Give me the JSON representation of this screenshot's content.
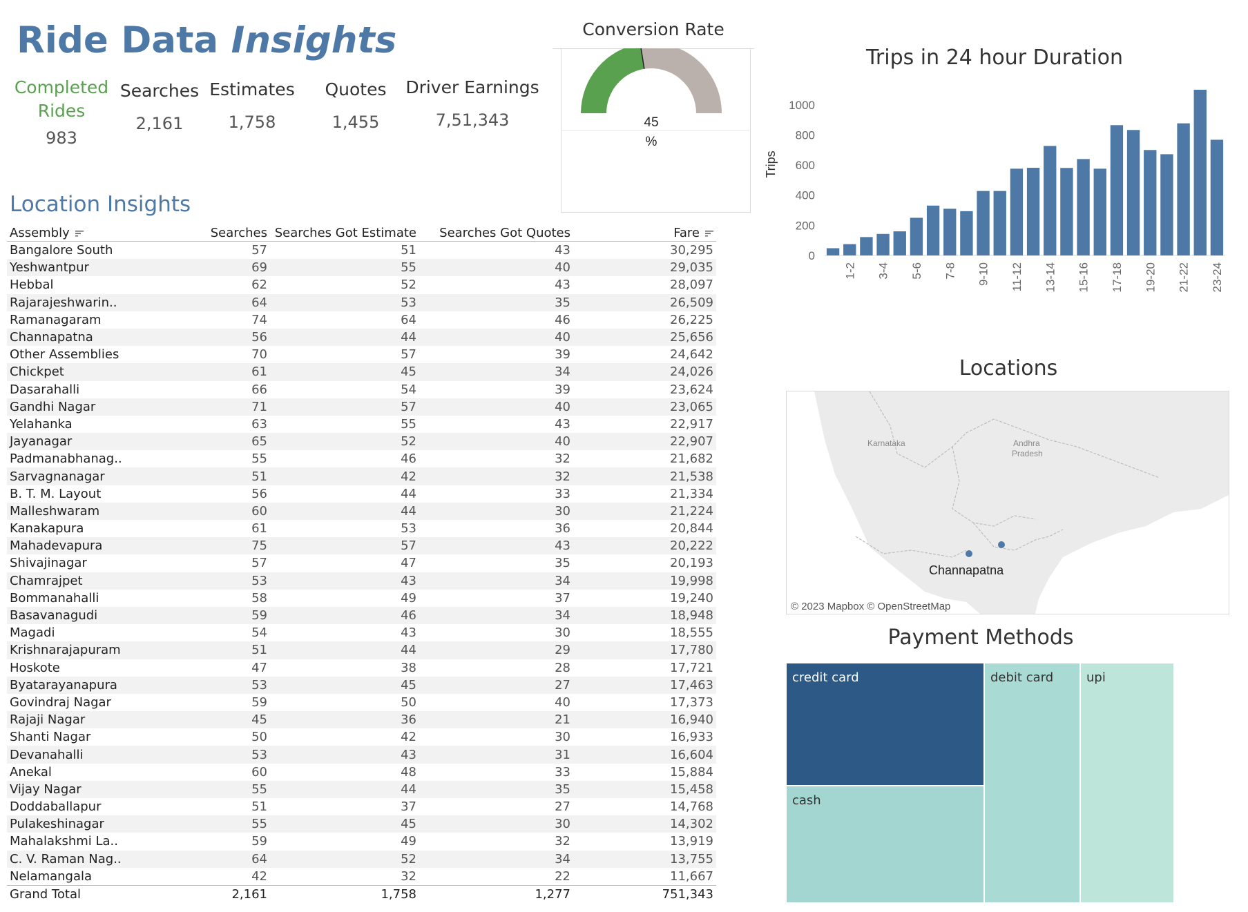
{
  "title": {
    "part1": "Ride Data ",
    "part2": "Insights"
  },
  "kpis": [
    {
      "label": "Completed Rides",
      "value": "983"
    },
    {
      "label": "Searches",
      "value": "2,161"
    },
    {
      "label": "Estimates",
      "value": "1,758"
    },
    {
      "label": "Quotes",
      "value": "1,455"
    },
    {
      "label": "Driver Earnings",
      "value": "7,51,343"
    }
  ],
  "gauge": {
    "title": "Conversion Rate",
    "value_text": "45",
    "unit": "%",
    "value": 45,
    "fill_color": "#59a14f",
    "rest_color": "#bab0ac"
  },
  "location_insights": {
    "title": "Location Insights",
    "columns": [
      "Assembly",
      "Searches",
      "Searches Got Estimate",
      "Searches Got Quotes",
      "Fare"
    ],
    "rows": [
      [
        "Bangalore South",
        "57",
        "51",
        "43",
        "30,295"
      ],
      [
        "Yeshwantpur",
        "69",
        "55",
        "40",
        "29,035"
      ],
      [
        "Hebbal",
        "62",
        "52",
        "43",
        "28,097"
      ],
      [
        "Rajarajeshwarin..",
        "64",
        "53",
        "35",
        "26,509"
      ],
      [
        "Ramanagaram",
        "74",
        "64",
        "46",
        "26,225"
      ],
      [
        "Channapatna",
        "56",
        "44",
        "40",
        "25,656"
      ],
      [
        "Other Assemblies",
        "70",
        "57",
        "39",
        "24,642"
      ],
      [
        "Chickpet",
        "61",
        "45",
        "34",
        "24,026"
      ],
      [
        "Dasarahalli",
        "66",
        "54",
        "39",
        "23,624"
      ],
      [
        "Gandhi Nagar",
        "71",
        "57",
        "40",
        "23,065"
      ],
      [
        "Yelahanka",
        "63",
        "55",
        "43",
        "22,917"
      ],
      [
        "Jayanagar",
        "65",
        "52",
        "40",
        "22,907"
      ],
      [
        "Padmanabhanag..",
        "55",
        "46",
        "32",
        "21,682"
      ],
      [
        "Sarvagnanagar",
        "51",
        "42",
        "32",
        "21,538"
      ],
      [
        "B. T. M. Layout",
        "56",
        "44",
        "33",
        "21,334"
      ],
      [
        "Malleshwaram",
        "60",
        "44",
        "30",
        "21,224"
      ],
      [
        "Kanakapura",
        "61",
        "53",
        "36",
        "20,844"
      ],
      [
        "Mahadevapura",
        "75",
        "57",
        "43",
        "20,222"
      ],
      [
        "Shivajinagar",
        "57",
        "47",
        "35",
        "20,193"
      ],
      [
        "Chamrajpet",
        "53",
        "43",
        "34",
        "19,998"
      ],
      [
        "Bommanahalli",
        "58",
        "49",
        "37",
        "19,240"
      ],
      [
        "Basavanagudi",
        "59",
        "46",
        "34",
        "18,948"
      ],
      [
        "Magadi",
        "54",
        "43",
        "30",
        "18,555"
      ],
      [
        "Krishnarajapuram",
        "51",
        "44",
        "29",
        "17,780"
      ],
      [
        "Hoskote",
        "47",
        "38",
        "28",
        "17,721"
      ],
      [
        "Byatarayanapura",
        "53",
        "45",
        "27",
        "17,463"
      ],
      [
        "Govindraj Nagar",
        "59",
        "50",
        "40",
        "17,373"
      ],
      [
        "Rajaji Nagar",
        "45",
        "36",
        "21",
        "16,940"
      ],
      [
        "Shanti Nagar",
        "50",
        "42",
        "30",
        "16,933"
      ],
      [
        "Devanahalli",
        "53",
        "43",
        "31",
        "16,604"
      ],
      [
        "Anekal",
        "60",
        "48",
        "33",
        "15,884"
      ],
      [
        "Vijay Nagar",
        "55",
        "44",
        "35",
        "15,458"
      ],
      [
        "Doddaballapur",
        "51",
        "37",
        "27",
        "14,768"
      ],
      [
        "Pulakeshinagar",
        "55",
        "45",
        "30",
        "14,302"
      ],
      [
        "Mahalakshmi La..",
        "59",
        "49",
        "32",
        "13,919"
      ],
      [
        "C. V. Raman Nag..",
        "64",
        "52",
        "34",
        "13,755"
      ],
      [
        "Nelamangala",
        "42",
        "32",
        "22",
        "11,667"
      ]
    ],
    "total": [
      "Grand Total",
      "2,161",
      "1,758",
      "1,277",
      "751,343"
    ]
  },
  "chart_data": {
    "type": "bar",
    "title": "Trips in  24 hour Duration",
    "xlabel": "",
    "ylabel": "Trips",
    "ylim": [
      0,
      1100
    ],
    "yticks": [
      0,
      200,
      400,
      600,
      800,
      1000
    ],
    "categories": [
      "0-1",
      "1-2",
      "2-3",
      "3-4",
      "4-5",
      "5-6",
      "6-7",
      "7-8",
      "8-9",
      "9-10",
      "10-11",
      "11-12",
      "12-13",
      "13-14",
      "14-15",
      "15-16",
      "16-17",
      "17-18",
      "18-19",
      "19-20",
      "20-21",
      "21-22",
      "22-23",
      "23-24"
    ],
    "shown_tick_labels": [
      "1-2",
      "3-4",
      "5-6",
      "7-8",
      "9-10",
      "11-12",
      "13-14",
      "15-16",
      "17-18",
      "19-20",
      "21-22",
      "23-24"
    ],
    "values": [
      48,
      75,
      122,
      143,
      160,
      250,
      331,
      310,
      294,
      428,
      428,
      576,
      582,
      727,
      581,
      640,
      576,
      865,
      833,
      700,
      672,
      877,
      1100,
      768
    ],
    "bar_color": "#4e79a7",
    "grid": false
  },
  "map": {
    "title": "Locations",
    "labels": {
      "state1": "Karnataka",
      "state2_line1": "Andhra",
      "state2_line2": "Pradesh",
      "city": "Channapatna"
    },
    "attribution": "© 2023 Mapbox © OpenStreetMap",
    "point_color": "#4e79a7"
  },
  "payment": {
    "title": "Payment Methods",
    "items": [
      {
        "label": "credit card",
        "color": "#2c5985"
      },
      {
        "label": "debit card",
        "color": "#a9dad3"
      },
      {
        "label": "upi",
        "color": "#bde5d9"
      },
      {
        "label": "cash",
        "color": "#a3d6d1"
      }
    ]
  }
}
